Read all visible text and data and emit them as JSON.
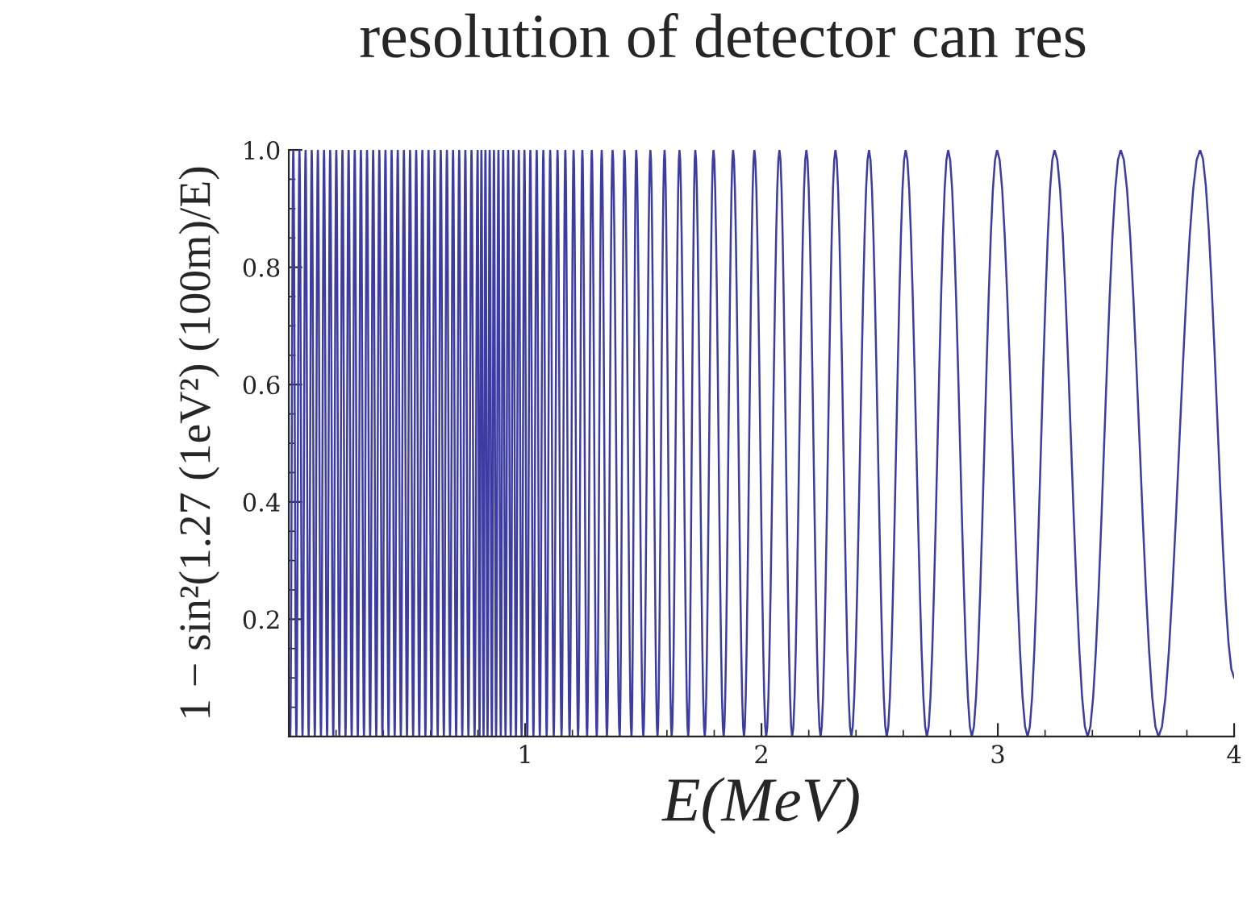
{
  "chart_data": {
    "type": "line",
    "title": "resolution of detector can res",
    "xlabel": "E(MeV)",
    "ylabel": "1 − sin²(1.27 (1eV²) (100m)/E)",
    "xlim": [
      0,
      4
    ],
    "ylim": [
      0,
      1
    ],
    "xticks": [
      1,
      2,
      3,
      4
    ],
    "yticks": [
      {
        "value": 0.2,
        "label": "0.2"
      },
      {
        "value": 0.4,
        "label": "0.4"
      },
      {
        "value": 0.6,
        "label": "0.6"
      },
      {
        "value": 0.8,
        "label": "0.8"
      },
      {
        "value": 1.0,
        "label": "1.0"
      }
    ],
    "grid": false,
    "legend": false,
    "marker": "none",
    "line_style": "solid",
    "series": [
      {
        "color": "#3c3ca2",
        "x": [
          0.006,
          0.019,
          0.032,
          0.045,
          0.058,
          0.071,
          0.084,
          0.097,
          0.11,
          0.123,
          0.136,
          0.149,
          0.162,
          0.175,
          0.188,
          0.201,
          0.214,
          0.227,
          0.24,
          0.253,
          0.266,
          0.279,
          0.292,
          0.305,
          0.318,
          0.331,
          0.344,
          0.357,
          0.37,
          0.383,
          0.396,
          0.409,
          0.422,
          0.435,
          0.448,
          0.461,
          0.474,
          0.487,
          0.5,
          0.513,
          0.526,
          0.539,
          0.552,
          0.565,
          0.578,
          0.591,
          0.604,
          0.617,
          0.63,
          0.643,
          0.656,
          0.669,
          0.682,
          0.695,
          0.708,
          0.721,
          0.734,
          0.747,
          0.76,
          0.773,
          0.786,
          0.799,
          0.807,
          0.815,
          0.824,
          0.832,
          0.841,
          0.85,
          0.859,
          0.868,
          0.877,
          0.887,
          0.897,
          0.907,
          0.917,
          0.928,
          0.939,
          0.95,
          0.961,
          0.973,
          0.985,
          0.997,
          1.009,
          1.022,
          1.035,
          1.049,
          1.062,
          1.077,
          1.091,
          1.106,
          1.121,
          1.137,
          1.154,
          1.17,
          1.188,
          1.205,
          1.224,
          1.242,
          1.262,
          1.282,
          1.303,
          1.324,
          1.346,
          1.37,
          1.4,
          1.42,
          1.45,
          1.47,
          1.5,
          1.53,
          1.56,
          1.59,
          1.62,
          1.653,
          1.69,
          1.72,
          1.76,
          1.797,
          1.84,
          1.88,
          1.926,
          1.97,
          2.02,
          2.076,
          2.13,
          2.19,
          2.25,
          2.313,
          2.38,
          2.455,
          2.53,
          2.61,
          2.7,
          2.79,
          2.89,
          2.997,
          3.126,
          3.24,
          3.38,
          3.52,
          3.68,
          3.856,
          4.0
        ],
        "values": [
          0,
          1,
          0,
          1,
          0,
          1,
          0,
          1,
          0,
          1,
          0,
          1,
          0,
          1,
          0,
          1,
          0,
          1,
          0,
          1,
          0,
          1,
          0,
          1,
          0,
          1,
          0,
          1,
          0,
          1,
          0,
          1,
          0,
          1,
          0,
          1,
          0,
          1,
          0,
          1,
          0,
          1,
          0,
          1,
          0,
          1,
          0,
          1,
          0,
          1,
          0,
          1,
          0,
          1,
          0,
          1,
          0,
          1,
          0,
          1,
          0,
          1,
          0,
          1,
          0,
          1,
          0,
          1,
          0,
          1,
          0,
          1,
          0,
          1,
          0,
          1,
          0,
          1,
          0,
          1,
          0,
          1,
          0,
          1,
          0,
          1,
          0,
          1,
          0,
          1,
          0,
          1,
          0,
          1,
          0,
          1,
          0,
          1,
          0,
          1,
          0,
          1,
          0,
          1,
          0,
          1,
          0,
          1,
          0,
          1,
          0,
          1,
          0,
          1,
          0,
          1,
          0,
          1,
          0,
          1,
          0,
          1,
          0,
          1,
          0,
          1,
          0,
          1,
          0,
          1,
          0,
          1,
          0,
          1,
          0,
          1,
          0,
          1,
          0,
          1,
          0,
          1,
          0.1
        ]
      }
    ]
  }
}
